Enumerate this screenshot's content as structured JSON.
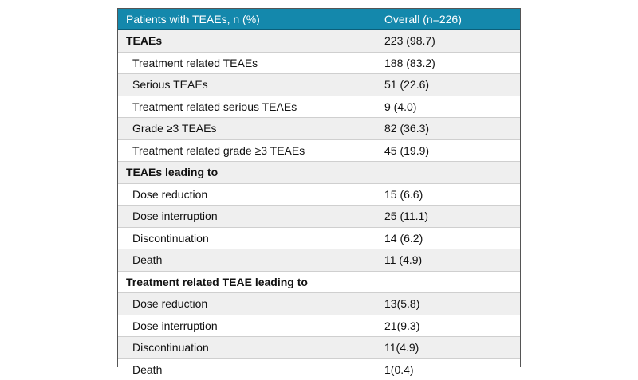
{
  "table": {
    "headers": [
      "Patients with TEAEs, n (%)",
      "Overall (n=226)"
    ],
    "rows": [
      {
        "label": "TEAEs",
        "value": "223 (98.7)",
        "section": true
      },
      {
        "label": "Treatment related TEAEs",
        "value": "188 (83.2)",
        "section": false
      },
      {
        "label": "Serious TEAEs",
        "value": "51 (22.6)",
        "section": false
      },
      {
        "label": "Treatment related serious TEAEs",
        "value": "9 (4.0)",
        "section": false
      },
      {
        "label": "Grade ≥3 TEAEs",
        "value": "82 (36.3)",
        "section": false
      },
      {
        "label": "Treatment related grade ≥3 TEAEs",
        "value": "45 (19.9)",
        "section": false
      },
      {
        "label": "TEAEs leading to",
        "value": "",
        "section": true
      },
      {
        "label": "Dose reduction",
        "value": "15 (6.6)",
        "section": false
      },
      {
        "label": "Dose interruption",
        "value": "25 (11.1)",
        "section": false
      },
      {
        "label": "Discontinuation",
        "value": "14 (6.2)",
        "section": false
      },
      {
        "label": "Death",
        "value": "11 (4.9)",
        "section": false
      },
      {
        "label": "Treatment related TEAE leading to",
        "value": "",
        "section": true
      },
      {
        "label": "Dose reduction",
        "value": "13(5.8)",
        "section": false
      },
      {
        "label": "Dose interruption",
        "value": "21(9.3)",
        "section": false
      },
      {
        "label": "Discontinuation",
        "value": "11(4.9)",
        "section": false
      },
      {
        "label": "Death",
        "value": "1(0.4)",
        "section": false
      }
    ]
  },
  "colors": {
    "header_bg": "#1488ac",
    "header_text": "#ffffff",
    "stripe": "#efefef"
  }
}
